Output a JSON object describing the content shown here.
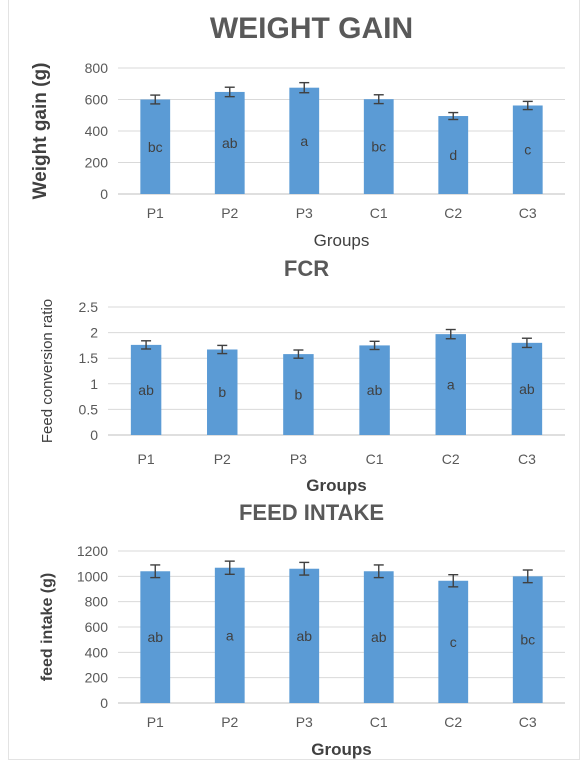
{
  "chart_data": [
    {
      "type": "bar",
      "title": "WEIGHT GAIN",
      "xlabel": "Groups",
      "ylabel": "Weight gain (g)",
      "ylim": [
        0,
        800
      ],
      "yticks": [
        0,
        200,
        400,
        600,
        800
      ],
      "categories": [
        "P1",
        "P2",
        "P3",
        "C1",
        "C2",
        "C3"
      ],
      "values": [
        600,
        648,
        675,
        602,
        495,
        562
      ],
      "errors": [
        28,
        30,
        32,
        28,
        22,
        26
      ],
      "bar_labels": [
        "bc",
        "ab",
        "a",
        "bc",
        "d",
        "c"
      ],
      "grid": true,
      "color": "#5b9bd5"
    },
    {
      "type": "bar",
      "title": "FCR",
      "xlabel": "Groups",
      "ylabel": "Feed conversion ratio",
      "ylim": [
        0,
        2.5
      ],
      "yticks": [
        0,
        0.5,
        1,
        1.5,
        2,
        2.5
      ],
      "categories": [
        "P1",
        "P2",
        "P3",
        "C1",
        "C2",
        "C3"
      ],
      "values": [
        1.76,
        1.67,
        1.58,
        1.75,
        1.97,
        1.8
      ],
      "errors": [
        0.08,
        0.08,
        0.08,
        0.08,
        0.09,
        0.09
      ],
      "bar_labels": [
        "ab",
        "b",
        "b",
        "ab",
        "a",
        "ab"
      ],
      "grid": true,
      "color": "#5b9bd5"
    },
    {
      "type": "bar",
      "title": "FEED INTAKE",
      "xlabel": "Groups",
      "ylabel": "feed intake (g)",
      "ylim": [
        0,
        1200
      ],
      "yticks": [
        0,
        200,
        400,
        600,
        800,
        1000,
        1200
      ],
      "categories": [
        "P1",
        "P2",
        "P3",
        "C1",
        "C2",
        "C3"
      ],
      "values": [
        1040,
        1068,
        1060,
        1040,
        965,
        1000
      ],
      "errors": [
        50,
        52,
        50,
        50,
        48,
        50
      ],
      "bar_labels": [
        "ab",
        "a",
        "ab",
        "ab",
        "c",
        "bc"
      ],
      "grid": true,
      "color": "#5b9bd5"
    }
  ]
}
